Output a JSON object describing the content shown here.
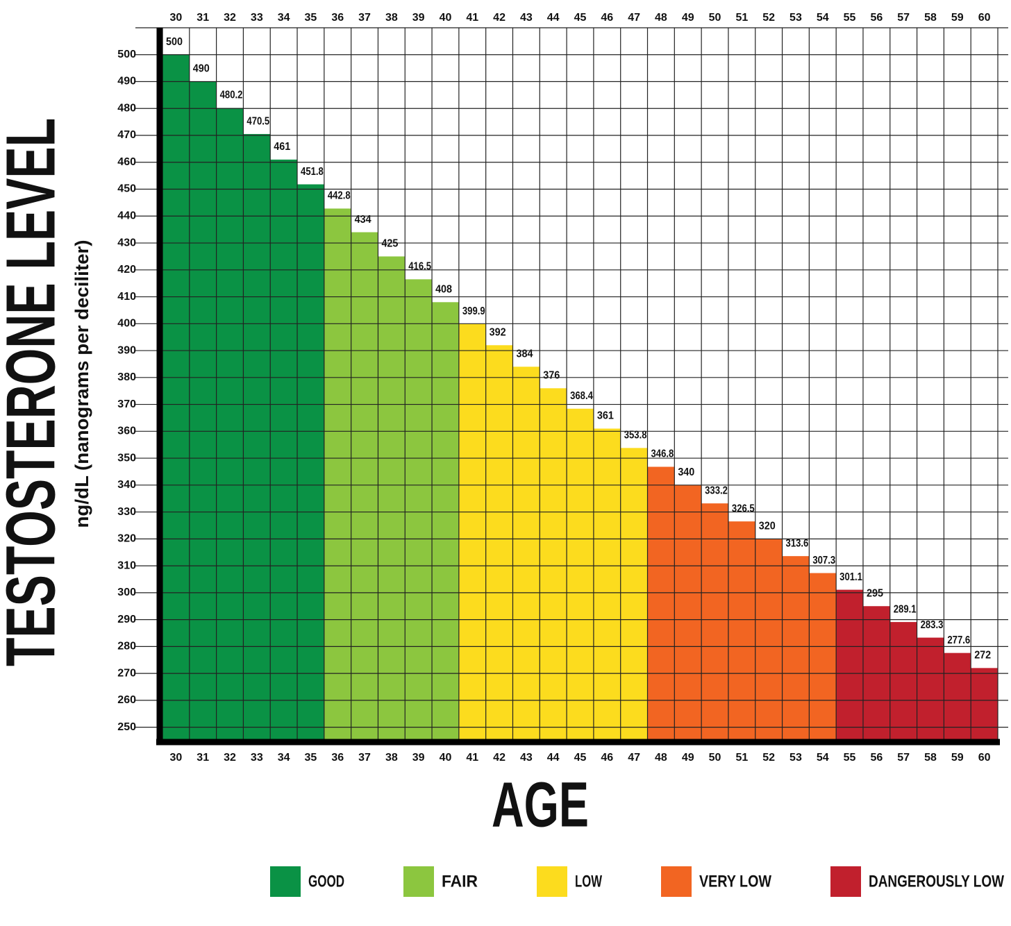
{
  "chart_data": {
    "type": "bar",
    "y_label": "TESTOSTERONE LEVEL",
    "y_sublabel": "ng/dL (nanograms per deciliter)",
    "x_label": "AGE",
    "categories": [
      30,
      31,
      32,
      33,
      34,
      35,
      36,
      37,
      38,
      39,
      40,
      41,
      42,
      43,
      44,
      45,
      46,
      47,
      48,
      49,
      50,
      51,
      52,
      53,
      54,
      55,
      56,
      57,
      58,
      59,
      60
    ],
    "series": [
      {
        "name": "GOOD",
        "color": "#0a9245",
        "values": [
          500,
          490,
          480.2,
          470.5,
          461,
          451.8,
          null,
          null,
          null,
          null,
          null,
          null,
          null,
          null,
          null,
          null,
          null,
          null,
          null,
          null,
          null,
          null,
          null,
          null,
          null,
          null,
          null,
          null,
          null,
          null,
          null
        ]
      },
      {
        "name": "FAIR",
        "color": "#8cc63f",
        "values": [
          null,
          null,
          null,
          null,
          null,
          null,
          442.8,
          434,
          425,
          416.5,
          408,
          null,
          null,
          null,
          null,
          null,
          null,
          null,
          null,
          null,
          null,
          null,
          null,
          null,
          null,
          null,
          null,
          null,
          null,
          null,
          null
        ]
      },
      {
        "name": "LOW",
        "color": "#fcdc1e",
        "values": [
          null,
          null,
          null,
          null,
          null,
          null,
          null,
          null,
          null,
          null,
          null,
          399.9,
          392,
          384,
          376,
          368.4,
          361,
          353.8,
          null,
          null,
          null,
          null,
          null,
          null,
          null,
          null,
          null,
          null,
          null,
          null,
          null
        ]
      },
      {
        "name": "VERY LOW",
        "color": "#f26522",
        "values": [
          null,
          null,
          null,
          null,
          null,
          null,
          null,
          null,
          null,
          null,
          null,
          null,
          null,
          null,
          null,
          null,
          null,
          null,
          346.8,
          340,
          333.2,
          326.5,
          320,
          313.6,
          307.3,
          null,
          null,
          null,
          null,
          null,
          null
        ]
      },
      {
        "name": "DANGEROUSLY LOW",
        "color": "#c1202d",
        "values": [
          null,
          null,
          null,
          null,
          null,
          null,
          null,
          null,
          null,
          null,
          null,
          null,
          null,
          null,
          null,
          null,
          null,
          null,
          null,
          null,
          null,
          null,
          null,
          null,
          null,
          301.1,
          295,
          289.1,
          283.3,
          277.6,
          272
        ]
      }
    ],
    "ylim": [
      245,
      510
    ],
    "yticks": [
      250,
      260,
      270,
      280,
      290,
      300,
      310,
      320,
      330,
      340,
      350,
      360,
      370,
      380,
      390,
      400,
      410,
      420,
      430,
      440,
      450,
      460,
      470,
      480,
      490,
      500
    ],
    "grid": true
  }
}
